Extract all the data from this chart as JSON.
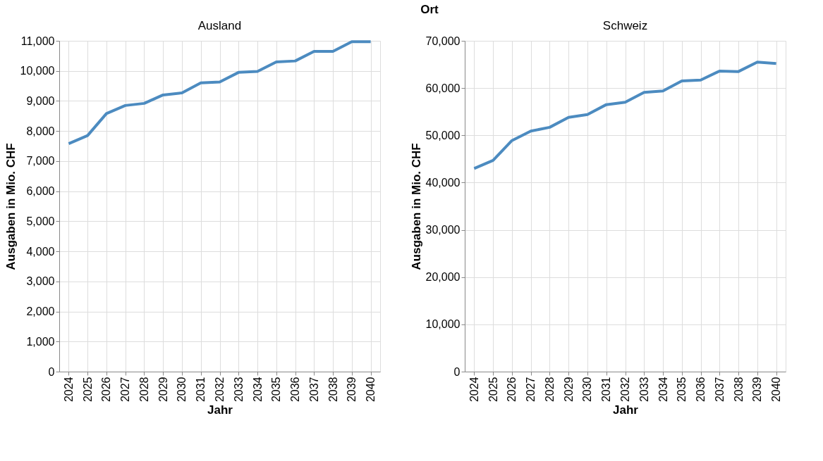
{
  "chart_data": [
    {
      "type": "line",
      "title": "Ausland",
      "annotations": [
        "Ort"
      ],
      "xlabel": "Jahr",
      "ylabel": "Ausgaben in Mio. CHF",
      "categories": [
        "2024",
        "2025",
        "2026",
        "2027",
        "2028",
        "2029",
        "2030",
        "2031",
        "2032",
        "2033",
        "2034",
        "2035",
        "2036",
        "2037",
        "2038",
        "2039",
        "2040"
      ],
      "series": [
        {
          "color": "#4c8bc0",
          "values": [
            7580,
            7850,
            8580,
            8850,
            8920,
            9200,
            9270,
            9600,
            9630,
            9950,
            9980,
            10300,
            10330,
            10650,
            10650,
            10970,
            10970
          ]
        }
      ],
      "ylim": [
        0,
        11000
      ],
      "yticks": [
        0,
        {
          "value": 1000,
          "label": "1,000"
        },
        {
          "value": 2000,
          "label": "2,000"
        },
        {
          "value": 3000,
          "label": "3,000"
        },
        {
          "value": 4000,
          "label": "4,000"
        },
        {
          "value": 5000,
          "label": "5,000"
        },
        {
          "value": 6000,
          "label": "6,000"
        },
        {
          "value": 7000,
          "label": "7,000"
        },
        {
          "value": 8000,
          "label": "8,000"
        },
        {
          "value": 9000,
          "label": "9,000"
        },
        {
          "value": 10000,
          "label": "10,000"
        },
        {
          "value": 11000,
          "label": "11,000"
        }
      ],
      "grid": true,
      "marker": "none",
      "line_style": "solid"
    },
    {
      "type": "line",
      "title": "Schweiz",
      "xlabel": "Jahr",
      "ylabel": "Ausgaben in Mio. CHF",
      "categories": [
        "2024",
        "2025",
        "2026",
        "2027",
        "2028",
        "2029",
        "2030",
        "2031",
        "2032",
        "2033",
        "2034",
        "2035",
        "2036",
        "2037",
        "2038",
        "2039",
        "2040"
      ],
      "series": [
        {
          "color": "#4c8bc0",
          "values": [
            43000,
            44700,
            48900,
            50900,
            51700,
            53800,
            54400,
            56500,
            57000,
            59100,
            59400,
            61500,
            61700,
            63600,
            63500,
            65500,
            65200
          ]
        }
      ],
      "ylim": [
        0,
        70000
      ],
      "yticks": [
        0,
        {
          "value": 10000,
          "label": "10,000"
        },
        {
          "value": 20000,
          "label": "20,000"
        },
        {
          "value": 30000,
          "label": "30,000"
        },
        {
          "value": 40000,
          "label": "40,000"
        },
        {
          "value": 50000,
          "label": "50,000"
        },
        {
          "value": 60000,
          "label": "60,000"
        },
        {
          "value": 70000,
          "label": "70,000"
        }
      ],
      "grid": true,
      "marker": "none",
      "line_style": "solid"
    }
  ]
}
